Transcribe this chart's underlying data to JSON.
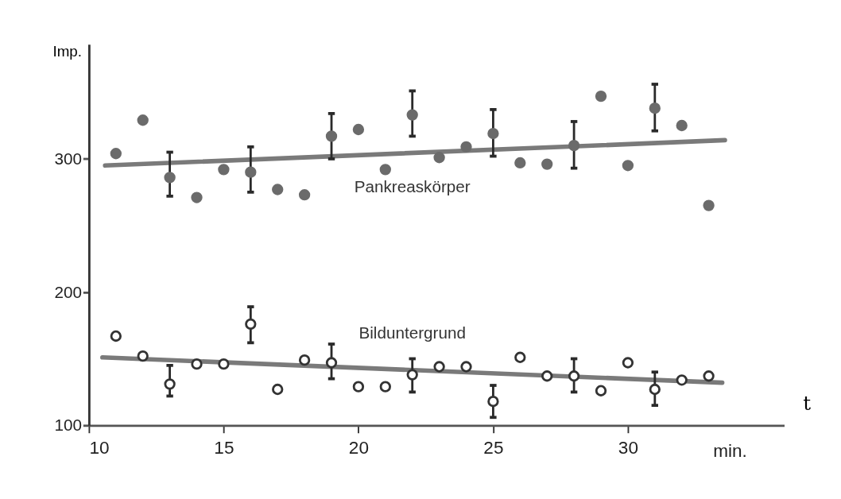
{
  "chart_data": {
    "type": "scatter",
    "xlabel": "t",
    "ylabel": "Imp.",
    "annotations": [
      "min."
    ],
    "xlim": [
      10,
      35.8
    ],
    "ylim": [
      100,
      386
    ],
    "xticks": [
      10,
      15,
      20,
      25,
      30
    ],
    "yticks": [
      100,
      200,
      300
    ],
    "grid": false,
    "series": [
      {
        "name": "Pankreaskörper",
        "marker": "circle",
        "color": "#6b6b6b",
        "x": [
          11,
          12,
          13,
          14,
          15,
          16,
          17,
          18,
          19,
          20,
          21,
          22,
          23,
          24,
          25,
          26,
          27,
          28,
          29,
          30,
          31,
          32,
          33
        ],
        "values": [
          304,
          329,
          286,
          271,
          292,
          290,
          277,
          273,
          317,
          322,
          292,
          333,
          301,
          309,
          319,
          297,
          296,
          310,
          347,
          295,
          338,
          325,
          265
        ],
        "errors": [
          null,
          null,
          [
            272,
            305
          ],
          null,
          null,
          [
            275,
            309
          ],
          null,
          null,
          [
            300,
            334
          ],
          null,
          null,
          [
            317,
            351
          ],
          null,
          null,
          [
            302,
            337
          ],
          null,
          null,
          [
            293,
            328
          ],
          null,
          null,
          [
            321,
            356
          ],
          null,
          null
        ]
      },
      {
        "type": "line",
        "color": "#7a7a7a",
        "x": [
          10.6,
          33.6
        ],
        "values": [
          295,
          314
        ]
      },
      {
        "name": "Bilduntergrund",
        "marker": "circle",
        "color": "#333333",
        "x": [
          11,
          12,
          13,
          14,
          15,
          16,
          17,
          18,
          19,
          20,
          21,
          22,
          23,
          24,
          25,
          26,
          27,
          28,
          29,
          30,
          31,
          32,
          33
        ],
        "values": [
          167,
          152,
          131,
          146,
          146,
          176,
          127,
          149,
          147,
          129,
          129,
          138,
          144,
          144,
          118,
          151,
          137,
          137,
          126,
          147,
          127,
          134,
          137
        ],
        "errors": [
          null,
          null,
          [
            122,
            145
          ],
          null,
          null,
          [
            162,
            189
          ],
          null,
          null,
          [
            135,
            161
          ],
          null,
          null,
          [
            125,
            150
          ],
          null,
          null,
          [
            106,
            130
          ],
          null,
          null,
          [
            125,
            150
          ],
          null,
          null,
          [
            115,
            140
          ],
          null,
          null
        ]
      },
      {
        "type": "line",
        "color": "#7a7a7a",
        "x": [
          10.5,
          33.5
        ],
        "values": [
          151,
          132
        ]
      }
    ]
  }
}
